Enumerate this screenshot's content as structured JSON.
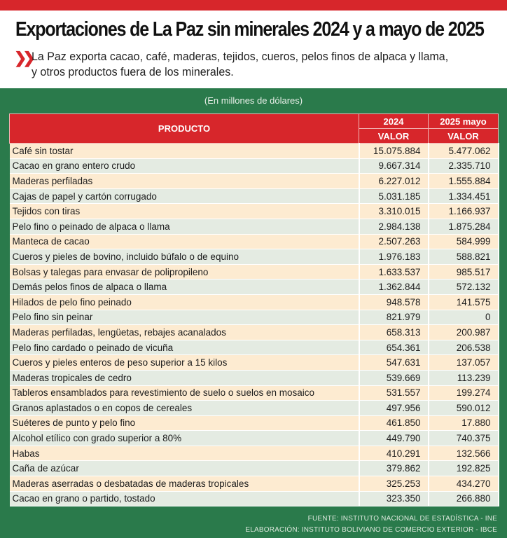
{
  "header": {
    "title": "Exportaciones de La Paz sin minerales 2024 y a mayo de 2025",
    "bullet_icon": "double-chevron-right-icon",
    "subtitle": "La Paz exporta cacao, café, maderas, tejidos, cueros, pelos finos de alpaca y llama, y otros productos fuera de los minerales."
  },
  "table": {
    "unit": "(En millones de dólares)",
    "col_product": "PRODUCTO",
    "col_2024": "2024",
    "col_2025": "2025 mayo",
    "sub_2024": "VALOR",
    "sub_2025": "VALOR",
    "rows": [
      [
        "Café sin tostar",
        "15.075.884",
        "5.477.062"
      ],
      [
        "Cacao en grano entero crudo",
        "9.667.314",
        "2.335.710"
      ],
      [
        "Maderas perfiladas",
        "6.227.012",
        "1.555.884"
      ],
      [
        "Cajas de papel y cartón corrugado",
        "5.031.185",
        "1.334.451"
      ],
      [
        "Tejidos con tiras",
        "3.310.015",
        "1.166.937"
      ],
      [
        "Pelo fino o peinado de alpaca o llama",
        "2.984.138",
        "1.875.284"
      ],
      [
        "Manteca de cacao",
        "2.507.263",
        "584.999"
      ],
      [
        "Cueros y pieles de bovino, incluido búfalo o de equino",
        "1.976.183",
        "588.821"
      ],
      [
        "Bolsas y talegas para envasar de polipropileno",
        "1.633.537",
        "985.517"
      ],
      [
        "Demás pelos finos de alpaca o llama",
        "1.362.844",
        "572.132"
      ],
      [
        "Hilados de pelo fino peinado",
        "948.578",
        "141.575"
      ],
      [
        "Pelo fino sin peinar",
        "821.979",
        "0"
      ],
      [
        "Maderas perfiladas, lengüetas, rebajes acanalados",
        "658.313",
        "200.987"
      ],
      [
        "Pelo fino cardado o peinado de vicuña",
        "654.361",
        "206.538"
      ],
      [
        "Cueros y pieles enteros de peso superior a 15 kilos",
        "547.631",
        "137.057"
      ],
      [
        "Maderas tropicales de cedro",
        "539.669",
        "113.239"
      ],
      [
        "Tableros ensamblados para revestimiento de suelo o suelos en mosaico",
        "531.557",
        "199.274"
      ],
      [
        "Granos aplastados o en copos de cereales",
        "497.956",
        "590.012"
      ],
      [
        "Suéteres de punto y pelo fino",
        "461.850",
        "17.880"
      ],
      [
        "Alcohol etílico con grado superior a 80%",
        "449.790",
        "740.375"
      ],
      [
        "Habas",
        "410.291",
        "132.566"
      ],
      [
        "Caña de azúcar",
        "379.862",
        "192.825"
      ],
      [
        "Maderas aserradas o desbatadas de maderas tropicales",
        "325.253",
        "434.270"
      ],
      [
        "Cacao en grano o partido, tostado",
        "323.350",
        "266.880"
      ]
    ]
  },
  "footer": {
    "source": "FUENTE: INSTITUTO NACIONAL DE ESTADÍSTICA - INE",
    "credit": "ELABORACIÓN: INSTITUTO BOLIVIANO DE COMERCIO EXTERIOR - IBCE"
  },
  "colors": {
    "red": "#d7262b",
    "green": "#2a7a4b",
    "row_odd": "#fdebd1",
    "row_even": "#e4ebe2"
  }
}
